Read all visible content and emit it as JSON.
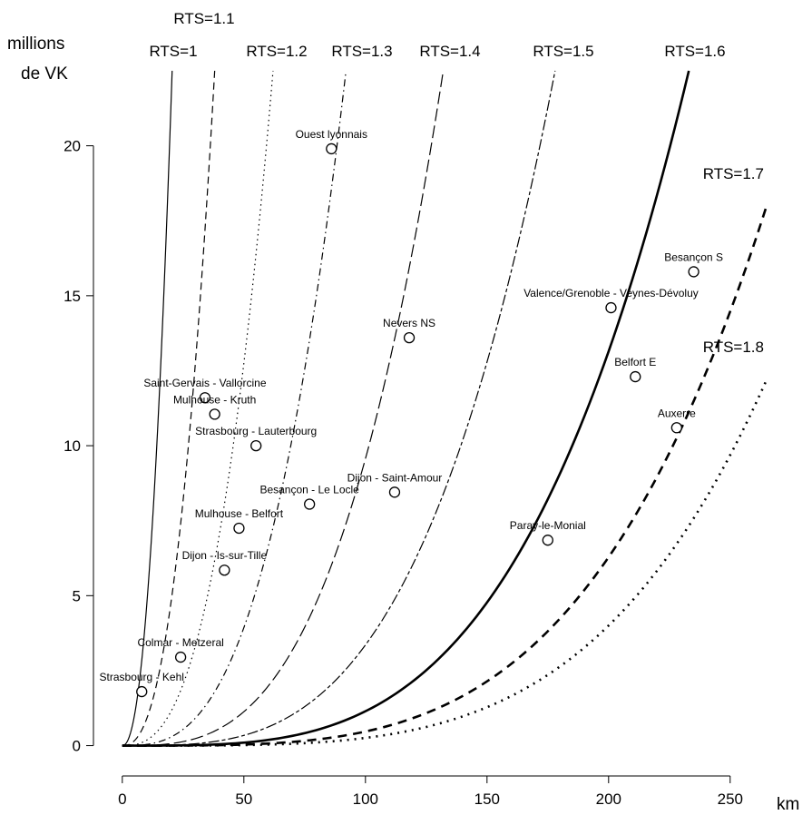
{
  "chart_data": {
    "type": "scatter",
    "title": "",
    "xlabel": "km",
    "ylabel": [
      "millions",
      "de VK"
    ],
    "xlim": [
      -10,
      265
    ],
    "ylim": [
      -0.8,
      22.5
    ],
    "xticks": [
      0,
      50,
      100,
      150,
      200,
      250
    ],
    "yticks": [
      0,
      5,
      10,
      15,
      20
    ],
    "grid": false,
    "curves": [
      {
        "label": "RTS=1",
        "rts": 1.0,
        "style": "solid-thin"
      },
      {
        "label": "RTS=1.1",
        "rts": 1.1,
        "style": "dashed-thin"
      },
      {
        "label": "RTS=1.2",
        "rts": 1.2,
        "style": "dotted-thin"
      },
      {
        "label": "RTS=1.3",
        "rts": 1.3,
        "style": "dotdash-thin"
      },
      {
        "label": "RTS=1.4",
        "rts": 1.4,
        "style": "longdash-thin"
      },
      {
        "label": "RTS=1.5",
        "rts": 1.5,
        "style": "twodash-thin"
      },
      {
        "label": "RTS=1.6",
        "rts": 1.6,
        "style": "solid-thick"
      },
      {
        "label": "RTS=1.7",
        "rts": 1.7,
        "style": "dashed-thick"
      },
      {
        "label": "RTS=1.8",
        "rts": 1.8,
        "style": "dotted-thick"
      }
    ],
    "points": [
      {
        "label": "Ouest lyonnais",
        "x": 86,
        "y": 19.9
      },
      {
        "label": "Besançon S",
        "x": 235,
        "y": 15.8
      },
      {
        "label": "Valence/Grenoble - Veynes-Dévoluy",
        "x": 201,
        "y": 14.6
      },
      {
        "label": "Nevers NS",
        "x": 118,
        "y": 13.6
      },
      {
        "label": "Belfort E",
        "x": 211,
        "y": 12.3
      },
      {
        "label": "Saint-Gervais - Vallorcine",
        "x": 34,
        "y": 11.6
      },
      {
        "label": "Mulhouse - Kruth",
        "x": 38,
        "y": 11.05
      },
      {
        "label": "Auxerre",
        "x": 228,
        "y": 10.6
      },
      {
        "label": "Strasbourg - Lauterbourg",
        "x": 55,
        "y": 10.0
      },
      {
        "label": "Dijon - Saint-Amour",
        "x": 112,
        "y": 8.45
      },
      {
        "label": "Besançon - Le Locle",
        "x": 77,
        "y": 8.05
      },
      {
        "label": "Mulhouse - Belfort",
        "x": 48,
        "y": 7.25
      },
      {
        "label": "Paray-le-Monial",
        "x": 175,
        "y": 6.85
      },
      {
        "label": "Dijon - Is-sur-Tille",
        "x": 42,
        "y": 5.85
      },
      {
        "label": "Colmar - Metzeral",
        "x": 24,
        "y": 2.95
      },
      {
        "label": "Strasbourg - Kehl",
        "x": 8,
        "y": 1.8
      }
    ]
  }
}
